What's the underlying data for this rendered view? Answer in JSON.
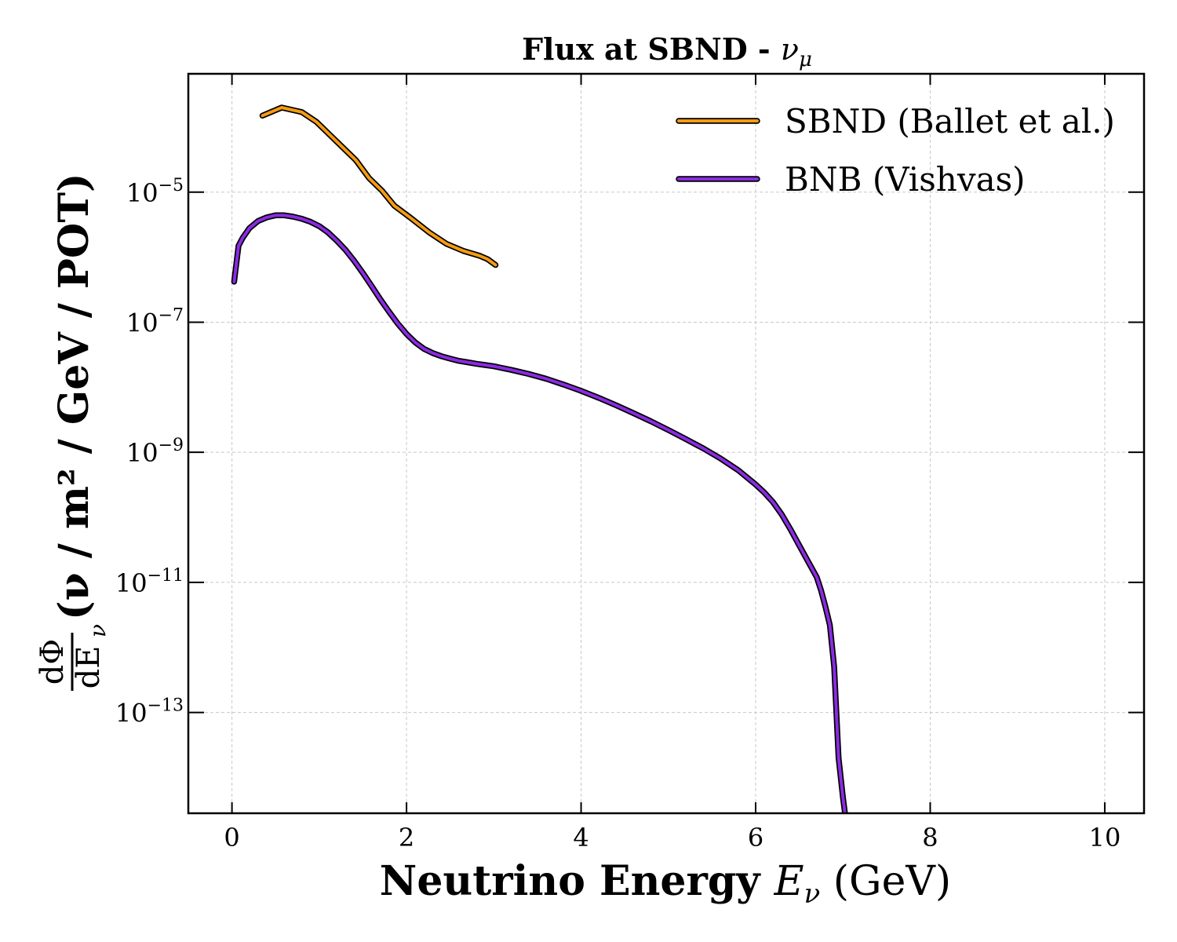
{
  "chart_data": {
    "type": "line",
    "title": "Flux at SBND - ",
    "title_symbol": "ν",
    "title_symbol_sub": "μ",
    "xlabel": "Neutrino Energy ",
    "xlabel_symbol": "E",
    "xlabel_symbol_sub": "ν",
    "xlabel_unit": " (GeV)",
    "ylabel_frac_num": "dΦ",
    "ylabel_frac_den": "dE",
    "ylabel_frac_den_sub": "ν",
    "ylabel_text": "(ν / m² / GeV / POT)",
    "xlim": [
      -0.5,
      10.45
    ],
    "ylim_log10": [
      -14.55,
      -3.18
    ],
    "yscale": "log",
    "grid": true,
    "legend_position": "top-right",
    "x_ticks": [
      {
        "value": 0,
        "label": "0"
      },
      {
        "value": 2,
        "label": "2"
      },
      {
        "value": 4,
        "label": "4"
      },
      {
        "value": 6,
        "label": "6"
      },
      {
        "value": 8,
        "label": "8"
      },
      {
        "value": 10,
        "label": "10"
      }
    ],
    "y_ticks": [
      {
        "exp": -5,
        "base": "10",
        "sup": "−5"
      },
      {
        "exp": -7,
        "base": "10",
        "sup": "−7"
      },
      {
        "exp": -9,
        "base": "10",
        "sup": "−9"
      },
      {
        "exp": -11,
        "base": "10",
        "sup": "−11"
      },
      {
        "exp": -13,
        "base": "10",
        "sup": "−13"
      }
    ],
    "series": [
      {
        "name": "SBND (Ballet et al.)",
        "color": "#f59b12",
        "x": [
          0.35,
          0.57,
          0.8,
          0.97,
          1.2,
          1.42,
          1.57,
          1.72,
          1.86,
          2.05,
          2.26,
          2.46,
          2.65,
          2.84,
          2.93,
          3.02
        ],
        "y": [
          0.00015,
          0.0002,
          0.00017,
          0.00012,
          6e-05,
          3.1e-05,
          1.65e-05,
          1.05e-05,
          6.2e-06,
          4e-06,
          2.4e-06,
          1.6e-06,
          1.25e-06,
          1.05e-06,
          9.3e-07,
          7.6e-07
        ]
      },
      {
        "name": "BNB (Vishvas)",
        "color": "#8a2be2",
        "x": [
          0.025,
          0.075,
          0.125,
          0.2,
          0.3,
          0.4,
          0.5,
          0.6,
          0.7,
          0.8,
          0.9,
          1.0,
          1.1,
          1.2,
          1.3,
          1.4,
          1.5,
          1.6,
          1.7,
          1.8,
          1.9,
          2.0,
          2.1,
          2.2,
          2.3,
          2.4,
          2.5,
          2.6,
          2.7,
          2.8,
          2.9,
          3.0,
          3.2,
          3.4,
          3.6,
          3.8,
          4.0,
          4.2,
          4.4,
          4.6,
          4.8,
          5.0,
          5.2,
          5.4,
          5.6,
          5.8,
          6.0,
          6.1,
          6.2,
          6.3,
          6.4,
          6.5,
          6.6,
          6.7,
          6.75,
          6.8,
          6.85,
          6.9,
          6.95,
          7.0,
          7.05,
          7.1,
          7.13,
          7.14,
          7.15
        ],
        "y": [
          4.2e-07,
          1.5e-06,
          2e-06,
          2.8e-06,
          3.6e-06,
          4.1e-06,
          4.4e-06,
          4.4e-06,
          4.2e-06,
          3.9e-06,
          3.5e-06,
          3e-06,
          2.4e-06,
          1.8e-06,
          1.3e-06,
          8.8e-07,
          5.7e-07,
          3.6e-07,
          2.25e-07,
          1.45e-07,
          9.5e-08,
          6.6e-08,
          4.9e-08,
          3.9e-08,
          3.35e-08,
          3e-08,
          2.75e-08,
          2.55e-08,
          2.42e-08,
          2.3e-08,
          2.2e-08,
          2.1e-08,
          1.85e-08,
          1.6e-08,
          1.35e-08,
          1.1e-08,
          8.8e-09,
          6.9e-09,
          5.3e-09,
          4e-09,
          3e-09,
          2.2e-09,
          1.6e-09,
          1.15e-09,
          8e-10,
          5.3e-10,
          3.2e-10,
          2.4e-10,
          1.7e-10,
          1.1e-10,
          6.5e-11,
          3.7e-11,
          2.1e-11,
          1.2e-11,
          7.5e-12,
          4.2e-12,
          2.2e-12,
          5e-13,
          2e-14,
          5e-15,
          1.5e-15,
          4e-16,
          1e-17,
          1e-17,
          1e-17
        ]
      }
    ]
  }
}
